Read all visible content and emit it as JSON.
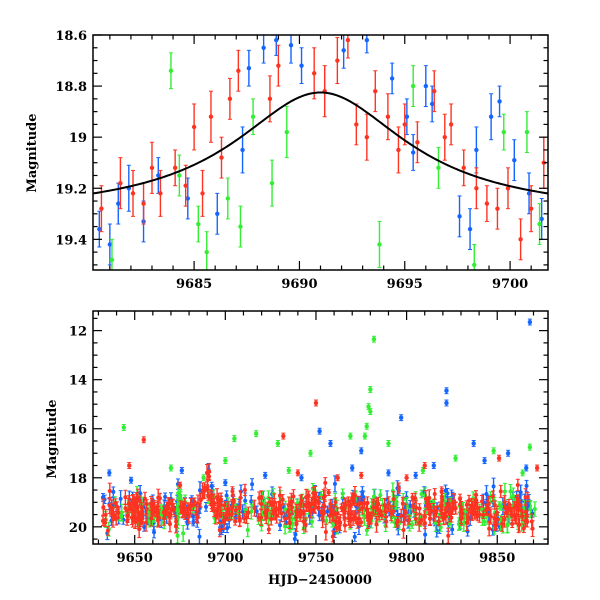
{
  "chart_data": [
    {
      "id": "top",
      "type": "scatter",
      "ylabel": "Magnitude",
      "xlabel": "",
      "xlim": [
        9680.2,
        9701.8
      ],
      "ylim": [
        18.6,
        19.52
      ],
      "y_inverted": true,
      "xticks": [
        9685,
        9690,
        9695,
        9700
      ],
      "yticks": [
        18.6,
        18.8,
        19,
        19.2,
        19.4
      ],
      "ytick_labels": [
        "18.6",
        "18.8",
        "19",
        "19.2",
        "19.4"
      ],
      "xtick_labels": [
        "9685",
        "9690",
        "9695",
        "9700"
      ],
      "model_curve": {
        "peak_time": 9691.0,
        "baseline_mag": 19.305,
        "peak_mag": 18.825,
        "width_days": 5.0
      },
      "series": [
        {
          "name": "blue",
          "color": "#1565ff",
          "points": [
            [
              9680.5,
              19.36,
              0.07
            ],
            [
              9681.0,
              19.42,
              0.08
            ],
            [
              9681.4,
              19.26,
              0.08
            ],
            [
              9681.9,
              19.2,
              0.09
            ],
            [
              9682.6,
              19.33,
              0.08
            ],
            [
              9683.3,
              19.15,
              0.07
            ],
            [
              9684.7,
              19.24,
              0.08
            ],
            [
              9686.1,
              19.3,
              0.08
            ],
            [
              9687.3,
              19.05,
              0.09
            ],
            [
              9687.6,
              18.73,
              0.07
            ],
            [
              9688.3,
              18.65,
              0.06
            ],
            [
              9688.9,
              18.62,
              0.06
            ],
            [
              9689.6,
              18.64,
              0.07
            ],
            [
              9690.1,
              18.72,
              0.07
            ],
            [
              9692.1,
              18.66,
              0.07
            ],
            [
              9693.2,
              18.62,
              0.05
            ],
            [
              9694.4,
              18.77,
              0.06
            ],
            [
              9695.1,
              18.92,
              0.07
            ],
            [
              9695.4,
              19.06,
              0.07
            ],
            [
              9696.0,
              18.8,
              0.08
            ],
            [
              9696.3,
              18.87,
              0.07
            ],
            [
              9697.6,
              19.31,
              0.08
            ],
            [
              9698.1,
              19.36,
              0.08
            ],
            [
              9698.4,
              19.05,
              0.09
            ],
            [
              9699.1,
              18.92,
              0.09
            ],
            [
              9699.5,
              18.86,
              0.06
            ],
            [
              9700.2,
              19.09,
              0.08
            ],
            [
              9700.9,
              19.22,
              0.08
            ],
            [
              9701.5,
              19.32,
              0.08
            ]
          ]
        },
        {
          "name": "green",
          "color": "#33ee33",
          "points": [
            [
              9681.1,
              19.48,
              0.08
            ],
            [
              9683.9,
              18.74,
              0.07
            ],
            [
              9684.3,
              19.15,
              0.08
            ],
            [
              9685.2,
              19.34,
              0.07
            ],
            [
              9685.6,
              19.45,
              0.08
            ],
            [
              9686.6,
              19.24,
              0.08
            ],
            [
              9687.2,
              19.35,
              0.08
            ],
            [
              9687.8,
              18.92,
              0.07
            ],
            [
              9688.7,
              19.18,
              0.09
            ],
            [
              9689.4,
              18.98,
              0.1
            ],
            [
              9693.8,
              19.42,
              0.09
            ],
            [
              9695.4,
              18.8,
              0.08
            ],
            [
              9696.6,
              19.12,
              0.08
            ],
            [
              9698.3,
              19.5,
              0.08
            ],
            [
              9699.7,
              18.98,
              0.07
            ],
            [
              9700.8,
              18.98,
              0.08
            ],
            [
              9701.4,
              19.34,
              0.08
            ]
          ]
        },
        {
          "name": "red",
          "color": "#ff3322",
          "points": [
            [
              9680.6,
              19.28,
              0.09
            ],
            [
              9681.5,
              19.18,
              0.1
            ],
            [
              9682.1,
              19.22,
              0.09
            ],
            [
              9682.6,
              19.26,
              0.08
            ],
            [
              9683.0,
              19.12,
              0.1
            ],
            [
              9683.4,
              19.22,
              0.09
            ],
            [
              9684.1,
              19.12,
              0.07
            ],
            [
              9684.6,
              19.19,
              0.08
            ],
            [
              9685.0,
              18.96,
              0.09
            ],
            [
              9685.4,
              19.22,
              0.09
            ],
            [
              9685.8,
              18.92,
              0.1
            ],
            [
              9686.3,
              19.08,
              0.08
            ],
            [
              9686.7,
              18.85,
              0.08
            ],
            [
              9687.1,
              18.74,
              0.08
            ],
            [
              9688.6,
              18.85,
              0.09
            ],
            [
              9689.0,
              18.72,
              0.08
            ],
            [
              9690.7,
              18.75,
              0.1
            ],
            [
              9691.2,
              18.82,
              0.1
            ],
            [
              9691.8,
              18.7,
              0.09
            ],
            [
              9692.3,
              18.62,
              0.07
            ],
            [
              9692.7,
              18.95,
              0.08
            ],
            [
              9693.2,
              19.0,
              0.09
            ],
            [
              9693.6,
              18.82,
              0.08
            ],
            [
              9694.2,
              18.92,
              0.09
            ],
            [
              9694.7,
              19.05,
              0.09
            ],
            [
              9695.0,
              18.95,
              0.08
            ],
            [
              9695.6,
              19.02,
              0.08
            ],
            [
              9696.4,
              18.82,
              0.08
            ],
            [
              9696.9,
              19.0,
              0.09
            ],
            [
              9697.2,
              18.95,
              0.08
            ],
            [
              9697.8,
              19.12,
              0.07
            ],
            [
              9698.4,
              19.2,
              0.08
            ],
            [
              9698.9,
              19.26,
              0.07
            ],
            [
              9699.4,
              19.28,
              0.08
            ],
            [
              9699.9,
              19.2,
              0.08
            ],
            [
              9700.5,
              19.4,
              0.08
            ],
            [
              9701.0,
              19.28,
              0.09
            ],
            [
              9701.6,
              19.1,
              0.1
            ]
          ]
        }
      ]
    },
    {
      "id": "bottom",
      "type": "scatter",
      "ylabel": "Magnitude",
      "xlabel": "HJD−2450000",
      "xlim": [
        9627,
        9878
      ],
      "ylim": [
        11.2,
        20.7
      ],
      "y_inverted": true,
      "xticks": [
        9650,
        9700,
        9750,
        9800,
        9850
      ],
      "yticks": [
        12,
        14,
        16,
        18,
        20
      ],
      "ytick_labels": [
        "12",
        "14",
        "16",
        "18",
        "20"
      ],
      "xtick_labels": [
        "9650",
        "9700",
        "9750",
        "9800",
        "9850"
      ],
      "series": [
        {
          "name": "blue",
          "color": "#1565ff",
          "outliers": [
            [
              9868,
              11.65
            ],
            [
              9822,
              14.45
            ],
            [
              9822,
              14.95
            ],
            [
              9752,
              16.1
            ],
            [
              9797,
              15.55
            ],
            [
              9758,
              16.6
            ],
            [
              9775,
              16.9
            ],
            [
              9843,
              17.3
            ],
            [
              9636,
              17.8
            ],
            [
              9676,
              17.7
            ],
            [
              9722,
              17.9
            ],
            [
              9742,
              18.0
            ],
            [
              9770,
              17.6
            ],
            [
              9790,
              17.8
            ],
            [
              9805,
              17.9
            ],
            [
              9815,
              17.5
            ],
            [
              9837,
              16.6
            ],
            [
              9856,
              17.0
            ],
            [
              9866,
              17.6
            ],
            [
              9648,
              18.1
            ],
            [
              9700,
              18.2
            ]
          ]
        },
        {
          "name": "green",
          "color": "#33ee33",
          "outliers": [
            [
              9782,
              12.35
            ],
            [
              9780,
              14.4
            ],
            [
              9779,
              15.1
            ],
            [
              9780,
              15.3
            ],
            [
              9778,
              15.9
            ],
            [
              9777,
              16.3
            ],
            [
              9644,
              15.95
            ],
            [
              9705,
              16.4
            ],
            [
              9717,
              16.2
            ],
            [
              9729,
              16.6
            ],
            [
              9769,
              16.3
            ],
            [
              9790,
              16.6
            ],
            [
              9747,
              17.0
            ],
            [
              9735,
              17.7
            ],
            [
              9700,
              17.3
            ],
            [
              9827,
              17.2
            ],
            [
              9848,
              16.9
            ],
            [
              9868,
              16.75
            ],
            [
              9809,
              17.7
            ],
            [
              9864,
              17.8
            ],
            [
              9688,
              18.0
            ],
            [
              9670,
              17.6
            ]
          ]
        },
        {
          "name": "red",
          "color": "#ff3322",
          "outliers": [
            [
              9750,
              14.95
            ],
            [
              9655,
              16.45
            ],
            [
              9732,
              16.3
            ],
            [
              9647,
              17.5
            ],
            [
              9675,
              18.3
            ],
            [
              9740,
              17.8
            ],
            [
              9762,
              18.0
            ],
            [
              9775,
              17.9
            ],
            [
              9800,
              18.0
            ],
            [
              9810,
              17.5
            ],
            [
              9851,
              17.2
            ],
            [
              9872,
              17.6
            ],
            [
              9690,
              18.4
            ],
            [
              9757,
              18.6
            ]
          ]
        }
      ]
    }
  ]
}
